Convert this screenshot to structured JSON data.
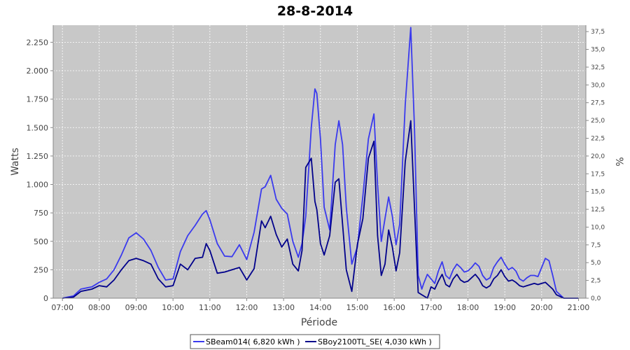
{
  "chart_data": {
    "type": "line",
    "title": "28-8-2014",
    "xlabel": "Période",
    "ylabel": "Watts",
    "y2label": "%",
    "xlim": [
      6.75,
      21.2
    ],
    "ylim": [
      0,
      2400
    ],
    "y2lim": [
      0,
      38.4
    ],
    "x_ticks": [
      7,
      8,
      9,
      10,
      11,
      12,
      13,
      14,
      15,
      16,
      17,
      18,
      19,
      20,
      21
    ],
    "x_tick_labels": [
      "07:00",
      "08:00",
      "09:00",
      "10:00",
      "11:00",
      "12:00",
      "13:00",
      "14:00",
      "15:00",
      "16:00",
      "17:00",
      "18:00",
      "19:00",
      "20:00",
      "21:00"
    ],
    "y_ticks": [
      0,
      250,
      500,
      750,
      1000,
      1250,
      1500,
      1750,
      2000,
      2250
    ],
    "y_tick_labels": [
      "0",
      "250",
      "500",
      "750",
      "1.000",
      "1.250",
      "1.500",
      "1.750",
      "2.000",
      "2.250"
    ],
    "y2_ticks": [
      0,
      2.5,
      5,
      7.5,
      10,
      12.5,
      15,
      17.5,
      20,
      22.5,
      25,
      27.5,
      30,
      32.5,
      35,
      37.5
    ],
    "y2_tick_labels": [
      "0,0",
      "2,5",
      "5,0",
      "7,5",
      "10,0",
      "12,5",
      "15,0",
      "17,5",
      "20,0",
      "22,5",
      "25,0",
      "27,5",
      "30,0",
      "32,5",
      "35,0",
      "37,5"
    ],
    "grid": true,
    "legend_position": "bottom",
    "series": [
      {
        "name": "SBeam014( 6,820 kWh )",
        "color": "#3a3aee",
        "x": [
          7.0,
          7.3,
          7.5,
          7.8,
          8.0,
          8.2,
          8.4,
          8.6,
          8.8,
          9.0,
          9.2,
          9.4,
          9.6,
          9.8,
          10.0,
          10.2,
          10.4,
          10.6,
          10.8,
          10.9,
          11.0,
          11.2,
          11.4,
          11.6,
          11.8,
          12.0,
          12.2,
          12.4,
          12.5,
          12.65,
          12.8,
          12.95,
          13.1,
          13.25,
          13.4,
          13.5,
          13.6,
          13.75,
          13.85,
          13.9,
          14.0,
          14.1,
          14.25,
          14.4,
          14.5,
          14.6,
          14.7,
          14.85,
          15.0,
          15.15,
          15.3,
          15.45,
          15.55,
          15.65,
          15.75,
          15.85,
          15.95,
          16.05,
          16.15,
          16.3,
          16.45,
          16.55,
          16.65,
          16.75,
          16.8,
          16.9,
          17.0,
          17.1,
          17.2,
          17.3,
          17.4,
          17.5,
          17.6,
          17.7,
          17.8,
          17.9,
          18.0,
          18.1,
          18.2,
          18.3,
          18.4,
          18.5,
          18.6,
          18.7,
          18.8,
          18.9,
          19.0,
          19.1,
          19.2,
          19.3,
          19.4,
          19.5,
          19.6,
          19.7,
          19.8,
          19.9,
          20.0,
          20.1,
          20.2,
          20.3,
          20.4,
          20.6,
          20.8,
          21.0
        ],
        "values": [
          0,
          20,
          80,
          100,
          140,
          170,
          250,
          380,
          530,
          575,
          520,
          420,
          270,
          160,
          170,
          410,
          550,
          640,
          740,
          770,
          690,
          480,
          370,
          365,
          470,
          340,
          580,
          960,
          980,
          1080,
          870,
          790,
          740,
          500,
          360,
          480,
          720,
          1500,
          1840,
          1800,
          1400,
          800,
          600,
          1350,
          1560,
          1350,
          800,
          300,
          450,
          900,
          1400,
          1620,
          1000,
          500,
          700,
          890,
          720,
          470,
          650,
          1700,
          2380,
          1500,
          200,
          80,
          130,
          210,
          170,
          130,
          240,
          320,
          200,
          170,
          250,
          300,
          270,
          230,
          240,
          270,
          310,
          280,
          200,
          160,
          180,
          270,
          320,
          360,
          300,
          250,
          270,
          240,
          170,
          150,
          180,
          200,
          200,
          190,
          270,
          350,
          330,
          200,
          60,
          0,
          0,
          0
        ]
      },
      {
        "name": "SBoy2100TL_SE( 4,030 kWh )",
        "color": "#00008b",
        "x": [
          7.0,
          7.3,
          7.5,
          7.8,
          8.0,
          8.2,
          8.4,
          8.6,
          8.8,
          9.0,
          9.2,
          9.4,
          9.6,
          9.8,
          10.0,
          10.2,
          10.4,
          10.6,
          10.8,
          10.9,
          11.0,
          11.2,
          11.4,
          11.6,
          11.8,
          12.0,
          12.2,
          12.4,
          12.5,
          12.65,
          12.8,
          12.95,
          13.1,
          13.25,
          13.4,
          13.5,
          13.6,
          13.75,
          13.85,
          13.9,
          14.0,
          14.1,
          14.25,
          14.4,
          14.5,
          14.6,
          14.7,
          14.85,
          15.0,
          15.15,
          15.3,
          15.45,
          15.55,
          15.65,
          15.75,
          15.85,
          15.95,
          16.05,
          16.15,
          16.3,
          16.45,
          16.55,
          16.65,
          16.75,
          16.8,
          16.9,
          17.0,
          17.1,
          17.2,
          17.3,
          17.4,
          17.5,
          17.6,
          17.7,
          17.8,
          17.9,
          18.0,
          18.1,
          18.2,
          18.3,
          18.4,
          18.5,
          18.6,
          18.7,
          18.8,
          18.9,
          19.0,
          19.1,
          19.2,
          19.3,
          19.4,
          19.5,
          19.6,
          19.7,
          19.8,
          19.9,
          20.0,
          20.1,
          20.2,
          20.3,
          20.4,
          20.6,
          20.8,
          21.0
        ],
        "values": [
          0,
          10,
          60,
          80,
          110,
          100,
          160,
          250,
          330,
          350,
          330,
          300,
          170,
          100,
          110,
          300,
          250,
          350,
          360,
          480,
          420,
          220,
          230,
          250,
          270,
          160,
          260,
          680,
          620,
          720,
          560,
          450,
          520,
          300,
          240,
          420,
          1150,
          1230,
          850,
          780,
          480,
          380,
          550,
          1020,
          1050,
          650,
          250,
          60,
          470,
          700,
          1230,
          1380,
          550,
          200,
          300,
          600,
          450,
          240,
          400,
          1200,
          1560,
          800,
          50,
          30,
          20,
          0,
          100,
          80,
          150,
          210,
          120,
          100,
          170,
          210,
          160,
          140,
          150,
          180,
          210,
          170,
          110,
          90,
          110,
          170,
          200,
          250,
          190,
          150,
          160,
          140,
          110,
          100,
          110,
          120,
          130,
          120,
          130,
          140,
          110,
          80,
          30,
          0,
          0,
          0
        ]
      }
    ]
  }
}
